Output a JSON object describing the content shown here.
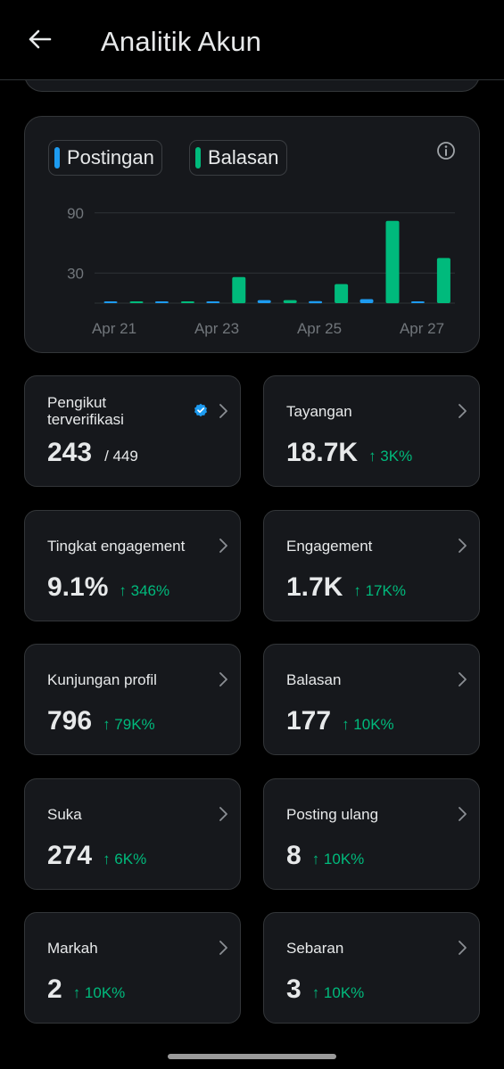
{
  "header": {
    "title": "Analitik Akun",
    "back_icon": "arrow-left-icon"
  },
  "chart_data": {
    "type": "bar",
    "categories": [
      "Apr 21",
      "Apr 22",
      "Apr 23",
      "Apr 24",
      "Apr 25",
      "Apr 26",
      "Apr 27"
    ],
    "x_tick_labels": [
      "Apr 21",
      "Apr 23",
      "Apr 25",
      "Apr 27"
    ],
    "y_tick_labels": [
      "90",
      "30"
    ],
    "y_ticks": [
      90,
      30
    ],
    "ylim": [
      0,
      104
    ],
    "series": [
      {
        "name": "Postingan",
        "color": "#1d9bf0",
        "values": [
          0,
          1,
          1,
          3,
          2,
          4,
          1
        ]
      },
      {
        "name": "Balasan",
        "color": "#00ba7c",
        "values": [
          0,
          1,
          26,
          3,
          19,
          82,
          45
        ]
      }
    ],
    "grid": true,
    "legend": "top-left"
  },
  "stats": [
    {
      "id": "pengikut-terverifikasi",
      "label": "Pengikut terverifikasi",
      "value": "243",
      "sub": "/ 449",
      "verified": true
    },
    {
      "id": "tayangan",
      "label": "Tayangan",
      "value": "18.7K",
      "delta": "↑ 3K%"
    },
    {
      "id": "tingkat-engagement",
      "label": "Tingkat engagement",
      "value": "9.1%",
      "delta": "↑ 346%"
    },
    {
      "id": "engagement",
      "label": "Engagement",
      "value": "1.7K",
      "delta": "↑ 17K%"
    },
    {
      "id": "kunjungan-profil",
      "label": "Kunjungan profil",
      "value": "796",
      "delta": "↑ 79K%"
    },
    {
      "id": "balasan",
      "label": "Balasan",
      "value": "177",
      "delta": "↑ 10K%"
    },
    {
      "id": "suka",
      "label": "Suka",
      "value": "274",
      "delta": "↑ 6K%"
    },
    {
      "id": "posting-ulang",
      "label": "Posting ulang",
      "value": "8",
      "delta": "↑ 10K%"
    },
    {
      "id": "markah",
      "label": "Markah",
      "value": "2",
      "delta": "↑ 10K%"
    },
    {
      "id": "sebaran",
      "label": "Sebaran",
      "value": "3",
      "delta": "↑ 10K%"
    }
  ],
  "colors": {
    "background": "#000000",
    "card": "#16181c",
    "border": "#333639",
    "positive": "#00ba7c",
    "accent": "#1d9bf0",
    "text": "#e7e9ea",
    "muted": "#71767b"
  }
}
